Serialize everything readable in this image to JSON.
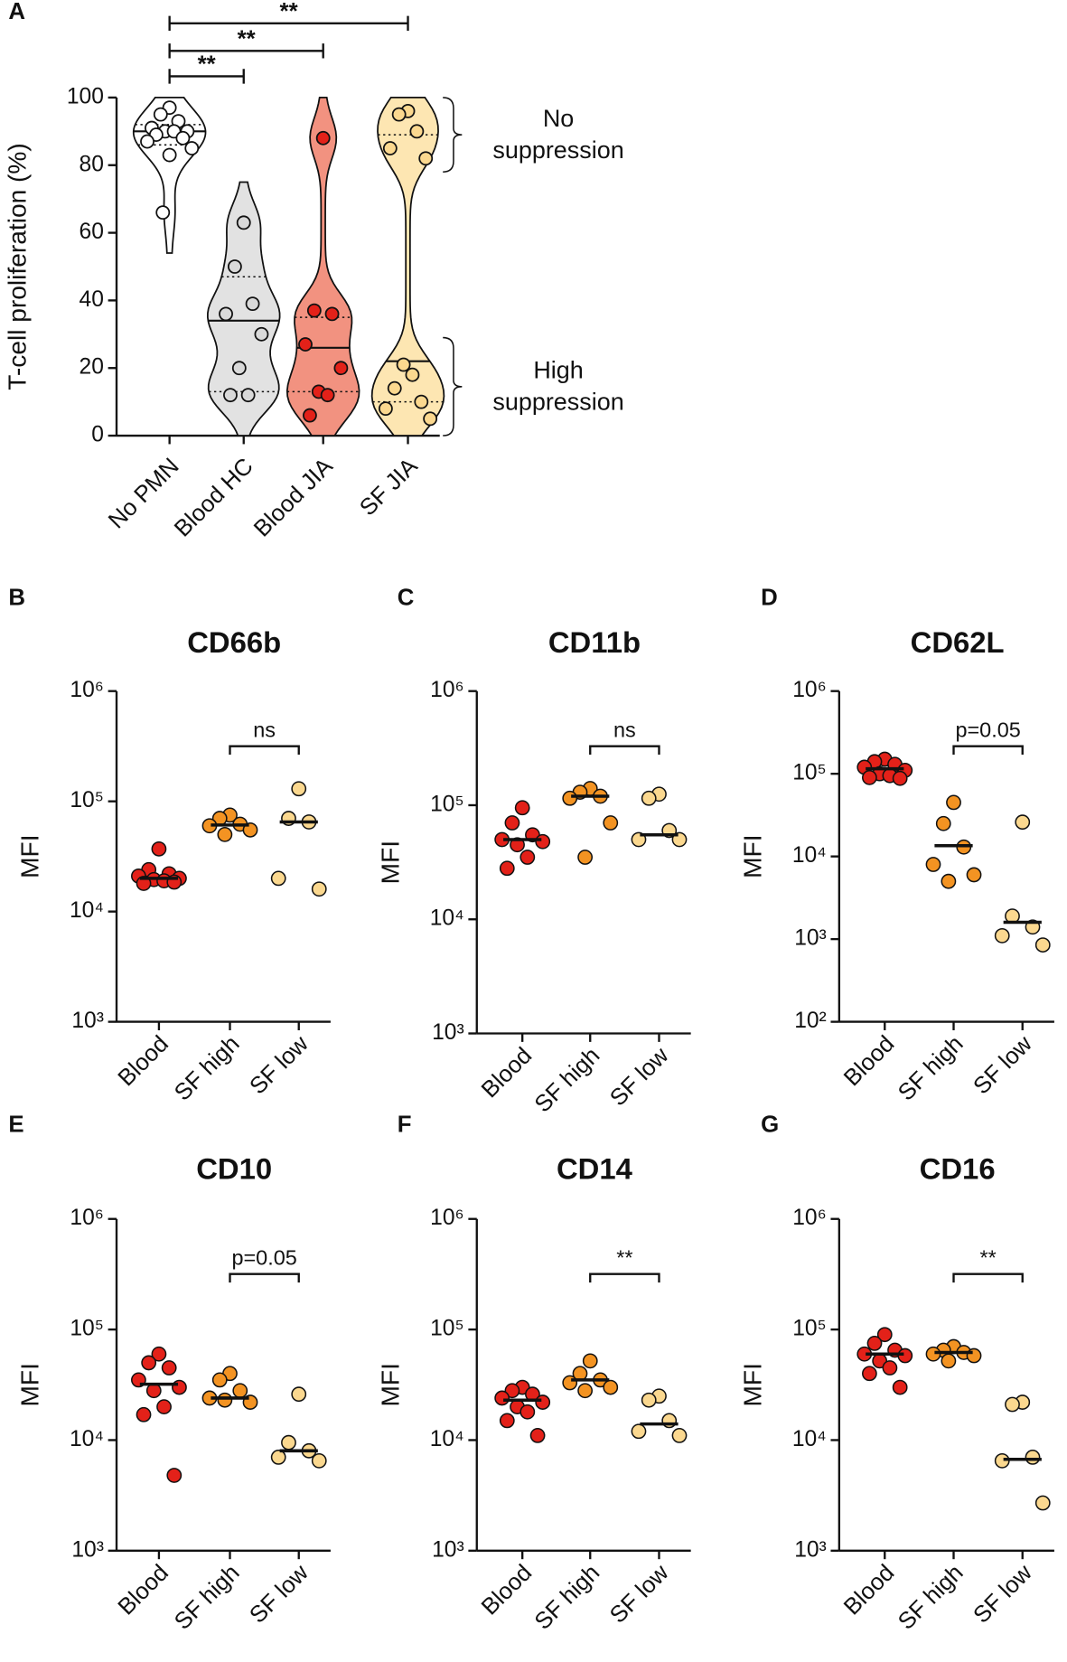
{
  "chart_data": [
    {
      "type": "violin",
      "panel": "A",
      "ylabel": "T-cell proliferation (%)",
      "categories": [
        "No PMN",
        "Blood HC",
        "Blood JIA",
        "SF JIA"
      ],
      "values": [
        [
          97,
          95,
          93,
          91,
          90,
          90,
          90,
          89,
          88,
          87,
          85,
          83,
          66
        ],
        [
          63,
          50,
          39,
          36,
          30,
          20,
          12,
          12
        ],
        [
          88,
          37,
          36,
          27,
          20,
          13,
          12,
          6
        ],
        [
          96,
          95,
          90,
          85,
          82,
          21,
          18,
          14,
          10,
          8,
          5
        ]
      ],
      "medians": [
        90,
        34,
        26,
        22
      ],
      "quartiles": [
        [
          86,
          92
        ],
        [
          13,
          47
        ],
        [
          13,
          35
        ],
        [
          10,
          89
        ]
      ],
      "colors": [
        "#ffffff",
        "#e2e2e2",
        "#f29280",
        "#fde6b2"
      ],
      "point_colors": [
        "#ffffff",
        "#d9d9d9",
        "#e32119",
        "#fbd88f"
      ],
      "ylim": [
        0,
        100
      ],
      "yticks": [
        0,
        20,
        40,
        60,
        80,
        100
      ],
      "comparisons": [
        {
          "from": "No PMN",
          "to": "Blood HC",
          "label": "**"
        },
        {
          "from": "No PMN",
          "to": "Blood JIA",
          "label": "**"
        },
        {
          "from": "No PMN",
          "to": "SF JIA",
          "label": "**"
        }
      ],
      "brackets": [
        {
          "text": [
            "No",
            "suppression"
          ],
          "range": [
            78,
            100
          ]
        },
        {
          "text": [
            "High",
            "suppression"
          ],
          "range": [
            0,
            29
          ]
        }
      ]
    },
    {
      "type": "dot",
      "panel": "B",
      "title": "CD66b",
      "ylabel": "MFI",
      "log": true,
      "categories": [
        "Blood",
        "SF high",
        "SF low"
      ],
      "values": [
        [
          37000,
          24000,
          22000,
          21000,
          20000,
          19500,
          19000,
          18000,
          18500
        ],
        [
          75000,
          70000,
          62000,
          60000,
          55000,
          50000
        ],
        [
          130000,
          70000,
          65000,
          20000,
          16000
        ]
      ],
      "medians": [
        20000,
        61000,
        65000
      ],
      "colors": [
        "#e32119",
        "#f39322",
        "#fbd88f"
      ],
      "ylim": [
        1000,
        1000000
      ],
      "yticks": [
        {
          "value": 1000,
          "label": "10³"
        },
        {
          "value": 10000,
          "label": "10⁴"
        },
        {
          "value": 100000,
          "label": "10⁵"
        },
        {
          "value": 1000000,
          "label": "10⁶"
        }
      ],
      "comparison": {
        "from": "SF high",
        "to": "SF low",
        "label": "ns"
      }
    },
    {
      "type": "dot",
      "panel": "C",
      "title": "CD11b",
      "ylabel": "MFI",
      "log": true,
      "categories": [
        "Blood",
        "SF high",
        "SF low"
      ],
      "values": [
        [
          95000,
          70000,
          55000,
          50000,
          48000,
          45000,
          35000,
          28000
        ],
        [
          140000,
          130000,
          120000,
          115000,
          70000,
          35000
        ],
        [
          125000,
          115000,
          60000,
          50000,
          50000
        ]
      ],
      "medians": [
        50000,
        120000,
        55000
      ],
      "colors": [
        "#e32119",
        "#f39322",
        "#fbd88f"
      ],
      "ylim": [
        1000,
        1000000
      ],
      "yticks": [
        {
          "value": 1000,
          "label": "10³"
        },
        {
          "value": 10000,
          "label": "10⁴"
        },
        {
          "value": 100000,
          "label": "10⁵"
        },
        {
          "value": 1000000,
          "label": "10⁶"
        }
      ],
      "comparison": {
        "from": "SF high",
        "to": "SF low",
        "label": "ns"
      }
    },
    {
      "type": "dot",
      "panel": "D",
      "title": "CD62L",
      "ylabel": "MFI",
      "log": true,
      "categories": [
        "Blood",
        "SF high",
        "SF low"
      ],
      "values": [
        [
          150000,
          140000,
          130000,
          120000,
          110000,
          100000,
          95000,
          90000,
          88000
        ],
        [
          45000,
          25000,
          13000,
          8000,
          6000,
          5000
        ],
        [
          26000,
          1900,
          1400,
          1100,
          850
        ]
      ],
      "medians": [
        115000,
        13500,
        1600
      ],
      "colors": [
        "#e32119",
        "#f39322",
        "#fbd88f"
      ],
      "ylim": [
        100,
        1000000
      ],
      "yticks": [
        {
          "value": 100,
          "label": "10²"
        },
        {
          "value": 1000,
          "label": "10³"
        },
        {
          "value": 10000,
          "label": "10⁴"
        },
        {
          "value": 100000,
          "label": "10⁵"
        },
        {
          "value": 1000000,
          "label": "10⁶"
        }
      ],
      "comparison": {
        "from": "SF high",
        "to": "SF low",
        "label": "p=0.05"
      }
    },
    {
      "type": "dot",
      "panel": "E",
      "title": "CD10",
      "ylabel": "MFI",
      "log": true,
      "categories": [
        "Blood",
        "SF high",
        "SF low"
      ],
      "values": [
        [
          60000,
          50000,
          45000,
          35000,
          30000,
          28000,
          20000,
          17000,
          4800
        ],
        [
          40000,
          35000,
          28000,
          24000,
          22000,
          23000
        ],
        [
          26000,
          9500,
          8000,
          7000,
          6500
        ]
      ],
      "medians": [
        32000,
        24000,
        8000
      ],
      "colors": [
        "#e32119",
        "#f39322",
        "#fbd88f"
      ],
      "ylim": [
        1000,
        1000000
      ],
      "yticks": [
        {
          "value": 1000,
          "label": "10³"
        },
        {
          "value": 10000,
          "label": "10⁴"
        },
        {
          "value": 100000,
          "label": "10⁵"
        },
        {
          "value": 1000000,
          "label": "10⁶"
        }
      ],
      "comparison": {
        "from": "SF high",
        "to": "SF low",
        "label": "p=0.05"
      }
    },
    {
      "type": "dot",
      "panel": "F",
      "title": "CD14",
      "ylabel": "MFI",
      "log": true,
      "categories": [
        "Blood",
        "SF high",
        "SF low"
      ],
      "values": [
        [
          30000,
          28000,
          26000,
          24000,
          22000,
          20000,
          18000,
          15000,
          11000
        ],
        [
          52000,
          40000,
          35000,
          33000,
          30000,
          28000
        ],
        [
          25000,
          23000,
          15000,
          12000,
          11000
        ]
      ],
      "medians": [
        23000,
        35000,
        14000
      ],
      "colors": [
        "#e32119",
        "#f39322",
        "#fbd88f"
      ],
      "ylim": [
        1000,
        1000000
      ],
      "yticks": [
        {
          "value": 1000,
          "label": "10³"
        },
        {
          "value": 10000,
          "label": "10⁴"
        },
        {
          "value": 100000,
          "label": "10⁵"
        },
        {
          "value": 1000000,
          "label": "10⁶"
        }
      ],
      "comparison": {
        "from": "SF high",
        "to": "SF low",
        "label": "**"
      }
    },
    {
      "type": "dot",
      "panel": "G",
      "title": "CD16",
      "ylabel": "MFI",
      "log": true,
      "categories": [
        "Blood",
        "SF high",
        "SF low"
      ],
      "values": [
        [
          90000,
          75000,
          65000,
          60000,
          58000,
          52000,
          45000,
          40000,
          30000
        ],
        [
          70000,
          65000,
          62000,
          60000,
          58000,
          52000
        ],
        [
          22000,
          21000,
          7000,
          6500,
          2700
        ]
      ],
      "medians": [
        60000,
        62000,
        6700
      ],
      "colors": [
        "#e32119",
        "#f39322",
        "#fbd88f"
      ],
      "ylim": [
        1000,
        1000000
      ],
      "yticks": [
        {
          "value": 1000,
          "label": "10³"
        },
        {
          "value": 10000,
          "label": "10⁴"
        },
        {
          "value": 100000,
          "label": "10⁵"
        },
        {
          "value": 1000000,
          "label": "10⁶"
        }
      ],
      "comparison": {
        "from": "SF high",
        "to": "SF low",
        "label": "**"
      }
    }
  ]
}
